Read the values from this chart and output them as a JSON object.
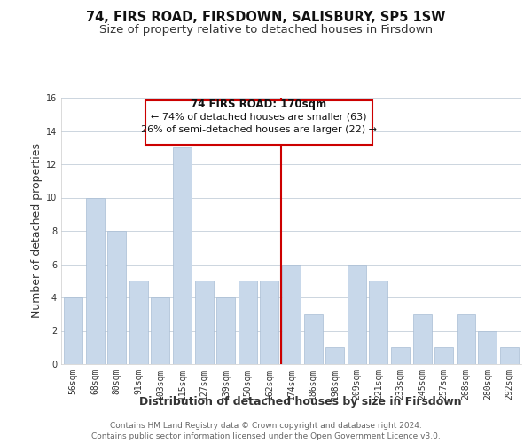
{
  "title": "74, FIRS ROAD, FIRSDOWN, SALISBURY, SP5 1SW",
  "subtitle": "Size of property relative to detached houses in Firsdown",
  "xlabel": "Distribution of detached houses by size in Firsdown",
  "ylabel": "Number of detached properties",
  "bin_labels": [
    "56sqm",
    "68sqm",
    "80sqm",
    "91sqm",
    "103sqm",
    "115sqm",
    "127sqm",
    "139sqm",
    "150sqm",
    "162sqm",
    "174sqm",
    "186sqm",
    "198sqm",
    "209sqm",
    "221sqm",
    "233sqm",
    "245sqm",
    "257sqm",
    "268sqm",
    "280sqm",
    "292sqm"
  ],
  "bar_values": [
    4,
    10,
    8,
    5,
    4,
    13,
    5,
    4,
    5,
    5,
    6,
    3,
    1,
    6,
    5,
    1,
    3,
    1,
    3,
    2,
    1
  ],
  "bar_color": "#c8d8ea",
  "bar_edge_color": "#a8bdd4",
  "annotation_title": "74 FIRS ROAD: 170sqm",
  "annotation_line1": "← 74% of detached houses are smaller (63)",
  "annotation_line2": "26% of semi-detached houses are larger (22) →",
  "annotation_box_color": "#ffffff",
  "annotation_box_edge_color": "#cc0000",
  "red_line_color": "#cc0000",
  "ylim": [
    0,
    16
  ],
  "yticks": [
    0,
    2,
    4,
    6,
    8,
    10,
    12,
    14,
    16
  ],
  "footer1": "Contains HM Land Registry data © Crown copyright and database right 2024.",
  "footer2": "Contains public sector information licensed under the Open Government Licence v3.0.",
  "background_color": "#ffffff",
  "plot_background_color": "#ffffff",
  "grid_color": "#ccd5de",
  "title_fontsize": 10.5,
  "subtitle_fontsize": 9.5,
  "axis_label_fontsize": 9,
  "tick_fontsize": 7,
  "footer_fontsize": 6.5,
  "annotation_fontsize_title": 8.5,
  "annotation_fontsize_lines": 8
}
